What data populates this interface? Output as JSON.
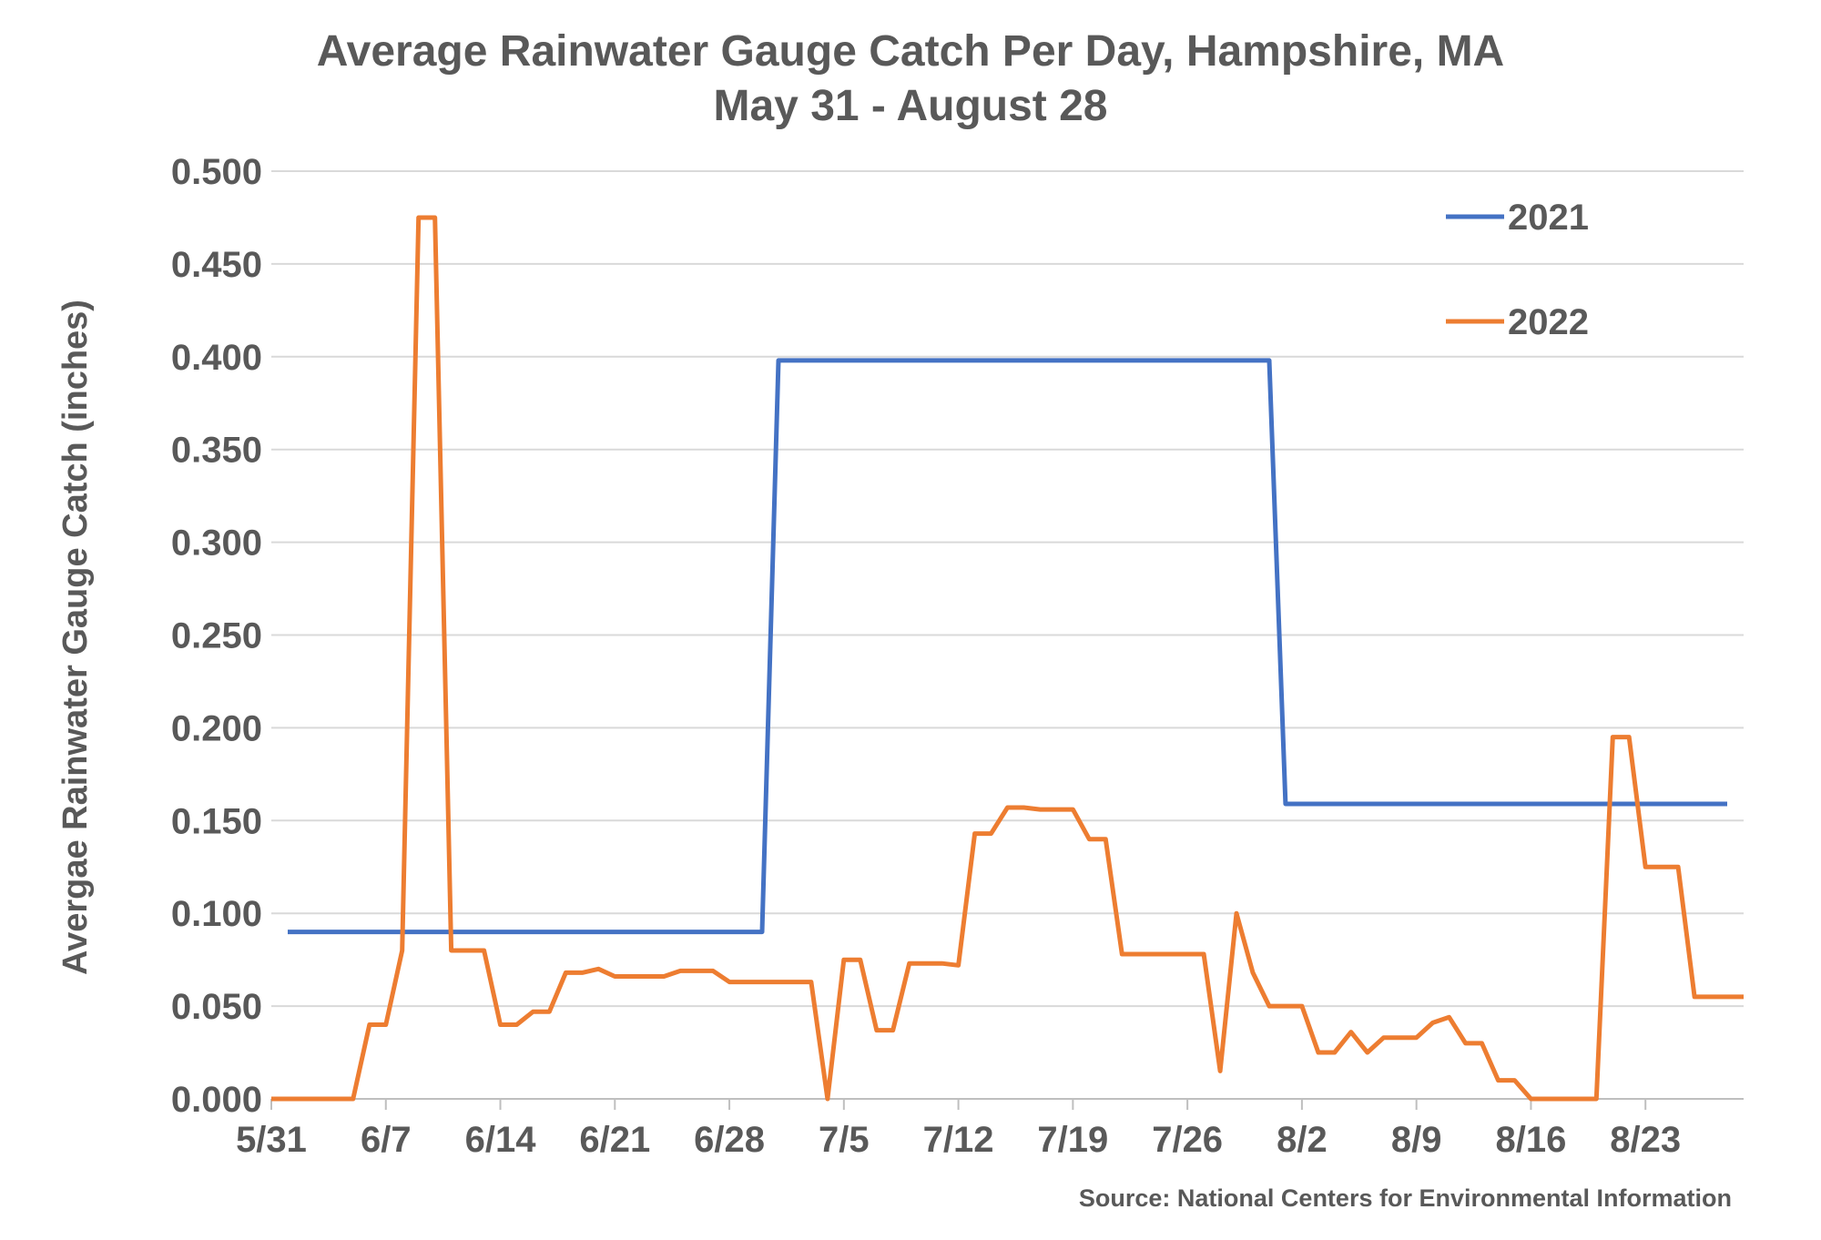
{
  "chart_data": {
    "type": "line",
    "title": "Average Rainwater Gauge Catch Per Day, Hampshire, MA",
    "subtitle": "May 31 - August 28",
    "xlabel": "",
    "ylabel": "Avergae Rainwater Gauge Catch (inches)",
    "source": "Source: National Centers for Environmental Information",
    "ylim": [
      0,
      0.5
    ],
    "y_ticks": [
      "0.000",
      "0.050",
      "0.100",
      "0.150",
      "0.200",
      "0.250",
      "0.300",
      "0.350",
      "0.400",
      "0.450",
      "0.500"
    ],
    "x_ticks": [
      "5/31",
      "6/7",
      "6/14",
      "6/21",
      "6/28",
      "7/5",
      "7/12",
      "7/19",
      "7/26",
      "8/2",
      "8/9",
      "8/16",
      "8/23"
    ],
    "grid": true,
    "legend_position": "top-right",
    "series": [
      {
        "name": "2021",
        "color": "#4472C4",
        "points": [
          [
            "6/1",
            0.09
          ],
          [
            "6/30",
            0.09
          ],
          [
            "7/1",
            0.398
          ],
          [
            "7/31",
            0.398
          ],
          [
            "8/1",
            0.159
          ],
          [
            "8/28",
            0.159
          ]
        ]
      },
      {
        "name": "2022",
        "color": "#ED7D31",
        "points": [
          [
            "5/31",
            0.0
          ],
          [
            "6/1",
            0.0
          ],
          [
            "6/2",
            0.0
          ],
          [
            "6/3",
            0.0
          ],
          [
            "6/4",
            0.0
          ],
          [
            "6/5",
            0.0
          ],
          [
            "6/6",
            0.04
          ],
          [
            "6/7",
            0.04
          ],
          [
            "6/8",
            0.08
          ],
          [
            "6/9",
            0.475
          ],
          [
            "6/10",
            0.475
          ],
          [
            "6/11",
            0.08
          ],
          [
            "6/12",
            0.08
          ],
          [
            "6/13",
            0.08
          ],
          [
            "6/14",
            0.04
          ],
          [
            "6/15",
            0.04
          ],
          [
            "6/16",
            0.047
          ],
          [
            "6/17",
            0.047
          ],
          [
            "6/18",
            0.068
          ],
          [
            "6/19",
            0.068
          ],
          [
            "6/20",
            0.07
          ],
          [
            "6/21",
            0.066
          ],
          [
            "6/22",
            0.066
          ],
          [
            "6/23",
            0.066
          ],
          [
            "6/24",
            0.066
          ],
          [
            "6/25",
            0.069
          ],
          [
            "6/26",
            0.069
          ],
          [
            "6/27",
            0.069
          ],
          [
            "6/28",
            0.063
          ],
          [
            "6/29",
            0.063
          ],
          [
            "6/30",
            0.063
          ],
          [
            "7/1",
            0.063
          ],
          [
            "7/2",
            0.063
          ],
          [
            "7/3",
            0.063
          ],
          [
            "7/4",
            0.0
          ],
          [
            "7/5",
            0.075
          ],
          [
            "7/6",
            0.075
          ],
          [
            "7/7",
            0.037
          ],
          [
            "7/8",
            0.037
          ],
          [
            "7/9",
            0.073
          ],
          [
            "7/10",
            0.073
          ],
          [
            "7/11",
            0.073
          ],
          [
            "7/12",
            0.072
          ],
          [
            "7/13",
            0.143
          ],
          [
            "7/14",
            0.143
          ],
          [
            "7/15",
            0.157
          ],
          [
            "7/16",
            0.157
          ],
          [
            "7/17",
            0.156
          ],
          [
            "7/18",
            0.156
          ],
          [
            "7/19",
            0.156
          ],
          [
            "7/20",
            0.14
          ],
          [
            "7/21",
            0.14
          ],
          [
            "7/22",
            0.078
          ],
          [
            "7/23",
            0.078
          ],
          [
            "7/24",
            0.078
          ],
          [
            "7/25",
            0.078
          ],
          [
            "7/26",
            0.078
          ],
          [
            "7/27",
            0.078
          ],
          [
            "7/28",
            0.015
          ],
          [
            "7/29",
            0.1
          ],
          [
            "7/30",
            0.068
          ],
          [
            "7/31",
            0.05
          ],
          [
            "8/1",
            0.05
          ],
          [
            "8/2",
            0.05
          ],
          [
            "8/3",
            0.025
          ],
          [
            "8/4",
            0.025
          ],
          [
            "8/5",
            0.036
          ],
          [
            "8/6",
            0.025
          ],
          [
            "8/7",
            0.033
          ],
          [
            "8/8",
            0.033
          ],
          [
            "8/9",
            0.033
          ],
          [
            "8/10",
            0.041
          ],
          [
            "8/11",
            0.044
          ],
          [
            "8/12",
            0.03
          ],
          [
            "8/13",
            0.03
          ],
          [
            "8/14",
            0.01
          ],
          [
            "8/15",
            0.01
          ],
          [
            "8/16",
            0.0
          ],
          [
            "8/17",
            0.0
          ],
          [
            "8/18",
            0.0
          ],
          [
            "8/19",
            0.0
          ],
          [
            "8/20",
            0.0
          ],
          [
            "8/21",
            0.195
          ],
          [
            "8/22",
            0.195
          ],
          [
            "8/23",
            0.125
          ],
          [
            "8/24",
            0.125
          ],
          [
            "8/25",
            0.125
          ],
          [
            "8/26",
            0.055
          ],
          [
            "8/27",
            0.055
          ],
          [
            "8/28",
            0.055
          ],
          [
            "8/29",
            0.055
          ]
        ]
      }
    ]
  }
}
